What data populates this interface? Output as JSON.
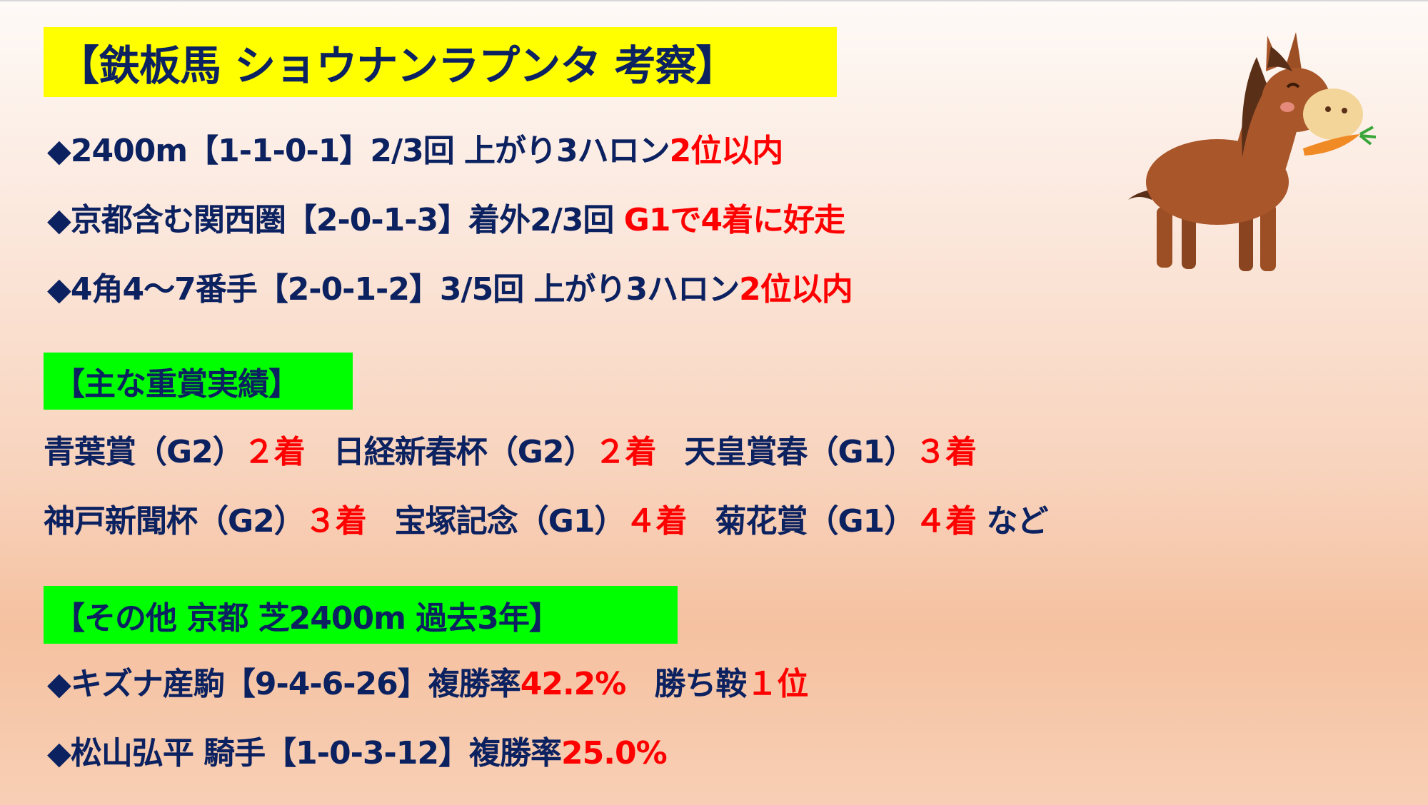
{
  "title": "【鉄板馬 ショウナンラプンタ 考察】",
  "points": [
    {
      "prefix": "◆",
      "text": "2400m【1-1-0-1】2/3回 上がり3ハロン",
      "highlight": "2位以内"
    },
    {
      "prefix": "◆",
      "text": "京都含む関西圏【2-0-1-3】着外2/3回 ",
      "highlight": "G1で4着に好走"
    },
    {
      "prefix": "◆",
      "text": "4角4～7番手【2-0-1-2】3/5回 上がり3ハロン",
      "highlight": "2位以内"
    }
  ],
  "graded_section": {
    "heading": "【主な重賞実績】",
    "races": [
      {
        "name": "青葉賞（G2）",
        "result": "２着"
      },
      {
        "name": "日経新春杯（G2）",
        "result": "２着"
      },
      {
        "name": "天皇賞春（G1）",
        "result": "３着"
      },
      {
        "name": "神戸新聞杯（G2）",
        "result": "３着"
      },
      {
        "name": "宝塚記念（G1）",
        "result": "４着"
      },
      {
        "name": "菊花賞（G1）",
        "result": "４着"
      }
    ],
    "suffix": " など"
  },
  "other_section": {
    "heading": "【その他 京都 芝2400m 過去3年】",
    "items": [
      {
        "prefix": "◆",
        "text": "キズナ産駒【9-4-6-26】複勝率",
        "highlight": "42.2%",
        "extra_label": "勝ち鞍",
        "extra_highlight": "１位"
      },
      {
        "prefix": "◆",
        "text": "松山弘平 騎手【1-0-3-12】複勝率",
        "highlight": "25.0%"
      }
    ]
  },
  "illustration": "horse-eating-carrot",
  "colors": {
    "text": "#0b2160",
    "highlight": "#ff0000",
    "title_bg": "#ffff00",
    "section_bg": "#00ff00"
  }
}
